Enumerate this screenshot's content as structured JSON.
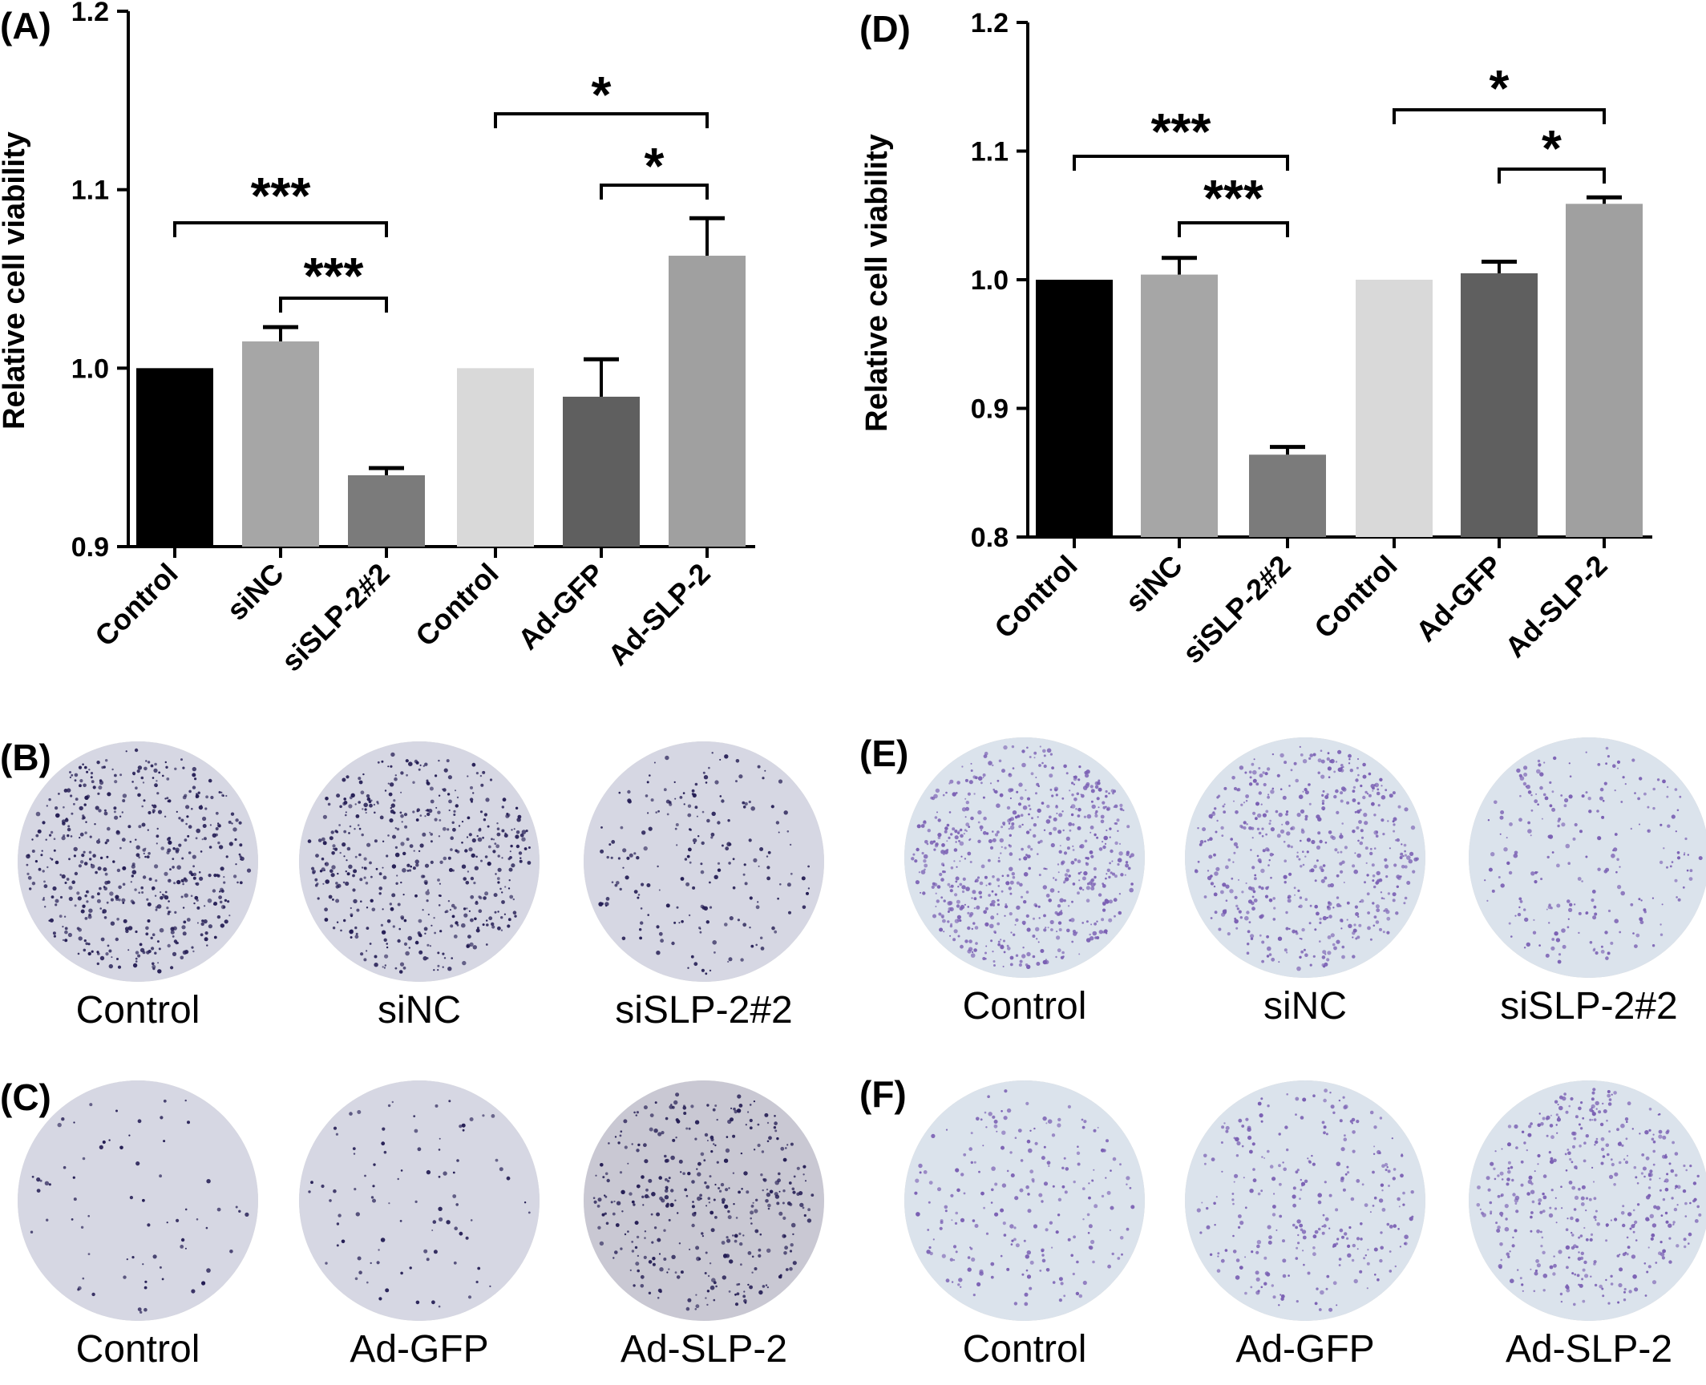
{
  "chart_data": [
    {
      "panel": "(A)",
      "type": "bar",
      "ylabel": "Relative cell viability",
      "ylim": [
        0.9,
        1.2
      ],
      "yticks": [
        "0.9",
        "1.0",
        "1.1",
        "1.2"
      ],
      "categories": [
        "Control",
        "siNC",
        "siSLP-2#2",
        "Control",
        "Ad-GFP",
        "Ad-SLP-2"
      ],
      "values": [
        1.0,
        1.015,
        0.94,
        1.0,
        0.984,
        1.063
      ],
      "errors": [
        0.0,
        0.008,
        0.004,
        0.0,
        0.021,
        0.021
      ],
      "colors": [
        "#000000",
        "#a6a6a6",
        "#7b7b7b",
        "#d9d9d9",
        "#5f5f5f",
        "#a0a0a0"
      ],
      "significance": [
        {
          "from": 0,
          "to": 2,
          "label": "***"
        },
        {
          "from": 1,
          "to": 2,
          "label": "***"
        },
        {
          "from": 3,
          "to": 5,
          "label": "*"
        },
        {
          "from": 4,
          "to": 5,
          "label": "*"
        }
      ]
    },
    {
      "panel": "(D)",
      "type": "bar",
      "ylabel": "Relative cell viability",
      "ylim": [
        0.8,
        1.2
      ],
      "yticks": [
        "0.8",
        "0.9",
        "1.0",
        "1.1",
        "1.2"
      ],
      "categories": [
        "Control",
        "siNC",
        "siSLP-2#2",
        "Control",
        "Ad-GFP",
        "Ad-SLP-2"
      ],
      "values": [
        1.0,
        1.004,
        0.864,
        1.0,
        1.005,
        1.059
      ],
      "errors": [
        0.0,
        0.013,
        0.006,
        0.0,
        0.009,
        0.005
      ],
      "colors": [
        "#000000",
        "#a6a6a6",
        "#7b7b7b",
        "#d9d9d9",
        "#5f5f5f",
        "#a0a0a0"
      ],
      "significance": [
        {
          "from": 0,
          "to": 2,
          "label": "***"
        },
        {
          "from": 1,
          "to": 2,
          "label": "***"
        },
        {
          "from": 3,
          "to": 5,
          "label": "*"
        },
        {
          "from": 4,
          "to": 5,
          "label": "*"
        }
      ]
    }
  ],
  "panels": {
    "B": "(B)",
    "C": "(C)",
    "E": "(E)",
    "F": "(F)"
  },
  "plates": {
    "B": {
      "labels": [
        "Control",
        "siNC",
        "siSLP-2#2"
      ],
      "dye": "#241d54",
      "density": [
        520,
        480,
        200
      ]
    },
    "C": {
      "labels": [
        "Control",
        "Ad-GFP",
        "Ad-SLP-2"
      ],
      "dye": "#241d54",
      "density": [
        70,
        90,
        360
      ]
    },
    "E": {
      "labels": [
        "Control",
        "siNC",
        "siSLP-2#2"
      ],
      "dye": "#7a5fb3",
      "density": [
        650,
        520,
        230
      ]
    },
    "F": {
      "labels": [
        "Control",
        "Ad-GFP",
        "Ad-SLP-2"
      ],
      "dye": "#7a5fb3",
      "density": [
        220,
        280,
        420
      ]
    }
  }
}
